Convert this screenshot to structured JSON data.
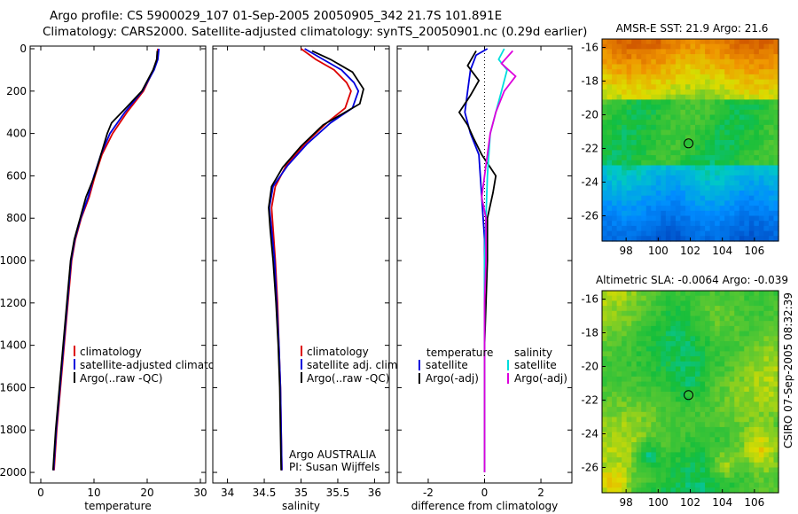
{
  "title_line1": "Argo profile: CS 5900029_107 01-Sep-2005 20050905_342 21.7S 101.891E",
  "title_line2": "Climatology: CARS2000. Satellite-adjusted climatology: synTS_20050901.nc (0.29d earlier)",
  "side_credit": "CSIRO 07-Sep-2005 08:32:39",
  "chart_data": [
    {
      "type": "line",
      "id": "temperature",
      "xlabel": "temperature",
      "ylabel": "",
      "xlim": [
        -2,
        31
      ],
      "ylim": [
        2050,
        0
      ],
      "xticks": [
        "0",
        "10",
        "20",
        "30"
      ],
      "xtick_values": [
        0,
        10,
        20,
        30
      ],
      "yticks": [
        "0",
        "200",
        "400",
        "600",
        "800",
        "1000",
        "1200",
        "1400",
        "1600",
        "1800",
        "2000"
      ],
      "ytick_values": [
        0,
        200,
        400,
        600,
        800,
        1000,
        1200,
        1400,
        1600,
        1800,
        2000
      ],
      "legend": [
        "climatology",
        "satellite-adjusted climatology",
        "Argo(..raw -QC)"
      ],
      "series": [
        {
          "name": "climatology",
          "color": "#dd0000",
          "points": [
            [
              22,
              0
            ],
            [
              21.8,
              50
            ],
            [
              21.2,
              100
            ],
            [
              19.3,
              200
            ],
            [
              16.2,
              300
            ],
            [
              13.5,
              400
            ],
            [
              11.5,
              500
            ],
            [
              10.2,
              600
            ],
            [
              9.1,
              700
            ],
            [
              7.6,
              800
            ],
            [
              6.5,
              900
            ],
            [
              5.8,
              1000
            ],
            [
              5.1,
              1200
            ],
            [
              4.4,
              1400
            ],
            [
              3.7,
              1600
            ],
            [
              3.0,
              1800
            ],
            [
              2.5,
              1990
            ]
          ]
        },
        {
          "name": "satellite-adjusted climatology",
          "color": "#0000dd",
          "points": [
            [
              22.2,
              0
            ],
            [
              22.0,
              50
            ],
            [
              21.3,
              100
            ],
            [
              19.1,
              200
            ],
            [
              15.8,
              300
            ],
            [
              13.0,
              400
            ],
            [
              11.3,
              500
            ],
            [
              10.0,
              600
            ],
            [
              8.9,
              700
            ],
            [
              7.5,
              800
            ],
            [
              6.4,
              900
            ],
            [
              5.7,
              1000
            ],
            [
              5.0,
              1200
            ],
            [
              4.3,
              1400
            ],
            [
              3.6,
              1600
            ],
            [
              2.9,
              1800
            ],
            [
              2.4,
              1990
            ]
          ]
        },
        {
          "name": "Argo(..raw -QC)",
          "color": "#000000",
          "points": [
            [
              21.9,
              10
            ],
            [
              21.8,
              50
            ],
            [
              21.1,
              100
            ],
            [
              19.0,
              200
            ],
            [
              16.0,
              280
            ],
            [
              13.3,
              350
            ],
            [
              12.5,
              400
            ],
            [
              11.3,
              500
            ],
            [
              10.1,
              600
            ],
            [
              9.3,
              650
            ],
            [
              8.5,
              700
            ],
            [
              7.4,
              800
            ],
            [
              6.3,
              900
            ],
            [
              5.6,
              1000
            ],
            [
              4.9,
              1200
            ],
            [
              4.2,
              1400
            ],
            [
              3.5,
              1600
            ],
            [
              2.8,
              1800
            ],
            [
              2.3,
              1990
            ]
          ]
        }
      ]
    },
    {
      "type": "line",
      "id": "salinity",
      "xlabel": "salinity",
      "xlim": [
        33.8,
        36.2
      ],
      "ylim": [
        2050,
        0
      ],
      "xticks": [
        "34",
        "34.5",
        "35",
        "35.5",
        "36"
      ],
      "xtick_values": [
        34,
        34.5,
        35,
        35.5,
        36
      ],
      "legend": [
        "climatology",
        "satellite adj. clim.",
        "Argo(..raw -QC)"
      ],
      "annotations": [
        "Argo AUSTRALIA",
        "PI: Susan Wijffels"
      ],
      "series": [
        {
          "name": "climatology",
          "color": "#dd0000",
          "points": [
            [
              35.0,
              0
            ],
            [
              35.2,
              50
            ],
            [
              35.45,
              100
            ],
            [
              35.62,
              160
            ],
            [
              35.68,
              200
            ],
            [
              35.6,
              280
            ],
            [
              35.35,
              350
            ],
            [
              35.05,
              450
            ],
            [
              34.8,
              550
            ],
            [
              34.65,
              650
            ],
            [
              34.6,
              750
            ],
            [
              34.62,
              850
            ],
            [
              34.65,
              1000
            ],
            [
              34.68,
              1200
            ],
            [
              34.7,
              1400
            ],
            [
              34.72,
              1600
            ],
            [
              34.73,
              1800
            ],
            [
              34.74,
              1990
            ]
          ]
        },
        {
          "name": "satellite adj. clim.",
          "color": "#0000dd",
          "points": [
            [
              35.05,
              0
            ],
            [
              35.3,
              50
            ],
            [
              35.55,
              100
            ],
            [
              35.72,
              160
            ],
            [
              35.78,
              200
            ],
            [
              35.7,
              280
            ],
            [
              35.4,
              350
            ],
            [
              35.08,
              450
            ],
            [
              34.82,
              550
            ],
            [
              34.62,
              650
            ],
            [
              34.57,
              750
            ],
            [
              34.6,
              850
            ],
            [
              34.64,
              1000
            ],
            [
              34.67,
              1200
            ],
            [
              34.7,
              1400
            ],
            [
              34.72,
              1600
            ],
            [
              34.73,
              1800
            ],
            [
              34.74,
              1990
            ]
          ]
        },
        {
          "name": "Argo(..raw -QC)",
          "color": "#000000",
          "points": [
            [
              35.15,
              10
            ],
            [
              35.4,
              50
            ],
            [
              35.7,
              110
            ],
            [
              35.85,
              190
            ],
            [
              35.8,
              260
            ],
            [
              35.6,
              300
            ],
            [
              35.3,
              360
            ],
            [
              35.0,
              460
            ],
            [
              34.75,
              560
            ],
            [
              34.6,
              650
            ],
            [
              34.56,
              750
            ],
            [
              34.58,
              850
            ],
            [
              34.62,
              1000
            ],
            [
              34.66,
              1200
            ],
            [
              34.69,
              1400
            ],
            [
              34.71,
              1600
            ],
            [
              34.72,
              1800
            ],
            [
              34.73,
              1990
            ]
          ]
        }
      ]
    },
    {
      "type": "line",
      "id": "difference",
      "xlabel": "difference from climatology",
      "xlim": [
        -3.1,
        3.1
      ],
      "ylim": [
        2050,
        0
      ],
      "xticks": [
        "-2",
        "0",
        "2"
      ],
      "xtick_values": [
        -2,
        0,
        2
      ],
      "legend_left_title": "temperature",
      "legend_right_title": "salinity",
      "legend": [
        "satellite",
        "Argo(-adj)",
        "satellite",
        "Argo(-adj)"
      ],
      "series": [
        {
          "name": "temperature satellite",
          "color": "#0000dd",
          "points": [
            [
              0.1,
              0
            ],
            [
              -0.3,
              30
            ],
            [
              -0.5,
              100
            ],
            [
              -0.6,
              200
            ],
            [
              -0.7,
              300
            ],
            [
              -0.5,
              400
            ],
            [
              -0.2,
              500
            ],
            [
              -0.1,
              700
            ],
            [
              0,
              900
            ],
            [
              0,
              1400
            ],
            [
              0,
              2000
            ]
          ]
        },
        {
          "name": "temperature Argo(-adj)",
          "color": "#000000",
          "points": [
            [
              -0.3,
              10
            ],
            [
              -0.6,
              80
            ],
            [
              -0.2,
              150
            ],
            [
              -0.5,
              220
            ],
            [
              -0.9,
              300
            ],
            [
              -0.6,
              360
            ],
            [
              -0.4,
              420
            ],
            [
              -0.1,
              500
            ],
            [
              0.2,
              560
            ],
            [
              0.4,
              600
            ],
            [
              0.3,
              680
            ],
            [
              0.1,
              800
            ],
            [
              0.1,
              1000
            ],
            [
              0.05,
              1200
            ],
            [
              0,
              1400
            ],
            [
              0,
              1600
            ],
            [
              0,
              2000
            ]
          ]
        },
        {
          "name": "salinity satellite",
          "color": "#00dddd",
          "points": [
            [
              0.7,
              0
            ],
            [
              0.5,
              50
            ],
            [
              0.8,
              100
            ],
            [
              0.6,
              200
            ],
            [
              0.4,
              300
            ],
            [
              0.2,
              400
            ],
            [
              0.1,
              600
            ],
            [
              0.05,
              800
            ],
            [
              0,
              1000
            ],
            [
              0,
              1600
            ],
            [
              0,
              2000
            ]
          ]
        },
        {
          "name": "salinity Argo(-adj)",
          "color": "#dd00dd",
          "points": [
            [
              1.0,
              10
            ],
            [
              0.6,
              70
            ],
            [
              1.1,
              130
            ],
            [
              0.7,
              200
            ],
            [
              0.4,
              300
            ],
            [
              0.2,
              400
            ],
            [
              0.1,
              500
            ],
            [
              0.0,
              600
            ],
            [
              -0.1,
              700
            ],
            [
              0.05,
              800
            ],
            [
              0.05,
              1000
            ],
            [
              0,
              1200
            ],
            [
              0,
              1500
            ],
            [
              0,
              2000
            ]
          ]
        }
      ]
    },
    {
      "type": "heatmap",
      "id": "sst-map",
      "title": "AMSR-E SST: 21.9 Argo: 21.6",
      "xlim": [
        96.5,
        107.5
      ],
      "ylim": [
        -27.5,
        -15.5
      ],
      "xticks": [
        "98",
        "100",
        "102",
        "104",
        "106"
      ],
      "xtick_values": [
        98,
        100,
        102,
        104,
        106
      ],
      "yticks": [
        "-16",
        "-18",
        "-20",
        "-22",
        "-24",
        "-26"
      ],
      "ytick_values": [
        -16,
        -18,
        -20,
        -22,
        -24,
        -26
      ],
      "argo_position": [
        101.891,
        -21.7
      ]
    },
    {
      "type": "heatmap",
      "id": "sla-map",
      "title": "Altimetric SLA: -0.0064 Argo: -0.039",
      "xlim": [
        96.5,
        107.5
      ],
      "ylim": [
        -27.5,
        -15.5
      ],
      "xticks": [
        "98",
        "100",
        "102",
        "104",
        "106"
      ],
      "xtick_values": [
        98,
        100,
        102,
        104,
        106
      ],
      "yticks": [
        "-16",
        "-18",
        "-20",
        "-22",
        "-24",
        "-26"
      ],
      "ytick_values": [
        -16,
        -18,
        -20,
        -22,
        -24,
        -26
      ],
      "argo_position": [
        101.891,
        -21.7
      ]
    }
  ]
}
